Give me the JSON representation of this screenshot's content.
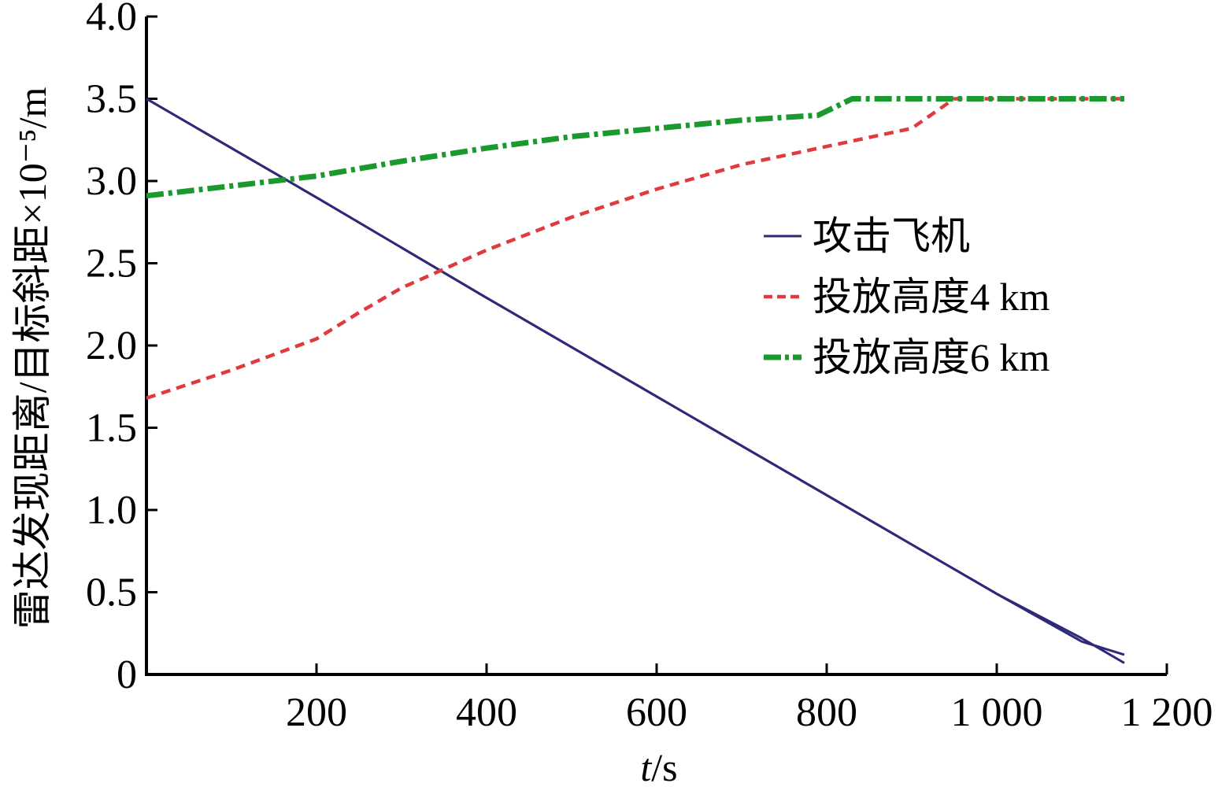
{
  "chart_data": {
    "type": "line",
    "title": "",
    "xlabel_italic": "t",
    "xlabel_rest": "/s",
    "ylabel": "雷达发现距离/目标斜距×10⁻⁵/m",
    "xlim": [
      0,
      1200
    ],
    "ylim": [
      0,
      4.0
    ],
    "x_ticks": [
      200,
      400,
      600,
      800,
      1000,
      1200
    ],
    "x_tick_labels": [
      "200",
      "400",
      "600",
      "800",
      "1 000",
      "1 200"
    ],
    "y_ticks": [
      0,
      0.5,
      1.0,
      1.5,
      2.0,
      2.5,
      3.0,
      3.5,
      4.0
    ],
    "y_tick_labels": [
      "0",
      "0.5",
      "1.0",
      "1.5",
      "2.0",
      "2.5",
      "3.0",
      "3.5",
      "4.0"
    ],
    "grid": false,
    "legend_position": "center-right",
    "series": [
      {
        "name": "攻击飞机",
        "color": "#2e2a78",
        "style": "solid",
        "points": [
          [
            0,
            3.5
          ],
          [
            200,
            2.9
          ],
          [
            400,
            2.29
          ],
          [
            600,
            1.69
          ],
          [
            800,
            1.09
          ],
          [
            1000,
            0.49
          ],
          [
            1100,
            0.2
          ],
          [
            1150,
            0.12
          ]
        ]
      },
      {
        "name": "攻击飞机",
        "color": "#2e2a78",
        "style": "solid",
        "legend": false,
        "points": [
          [
            0,
            3.5
          ],
          [
            200,
            2.9
          ],
          [
            400,
            2.29
          ],
          [
            600,
            1.69
          ],
          [
            800,
            1.09
          ],
          [
            1000,
            0.49
          ],
          [
            1100,
            0.22
          ],
          [
            1150,
            0.07
          ]
        ]
      },
      {
        "name": "投放高度4 km",
        "color": "#e03a3e",
        "style": "dashed",
        "points": [
          [
            0,
            1.68
          ],
          [
            100,
            1.85
          ],
          [
            200,
            2.04
          ],
          [
            250,
            2.2
          ],
          [
            300,
            2.35
          ],
          [
            400,
            2.58
          ],
          [
            500,
            2.78
          ],
          [
            600,
            2.95
          ],
          [
            700,
            3.1
          ],
          [
            800,
            3.21
          ],
          [
            900,
            3.32
          ],
          [
            950,
            3.5
          ],
          [
            1150,
            3.5
          ]
        ]
      },
      {
        "name": "投放高度6 km",
        "color": "#1a9a2e",
        "style": "dashdot",
        "points": [
          [
            0,
            2.91
          ],
          [
            100,
            2.97
          ],
          [
            200,
            3.03
          ],
          [
            300,
            3.12
          ],
          [
            400,
            3.2
          ],
          [
            500,
            3.27
          ],
          [
            600,
            3.32
          ],
          [
            700,
            3.37
          ],
          [
            790,
            3.4
          ],
          [
            830,
            3.5
          ],
          [
            1150,
            3.5
          ]
        ]
      }
    ]
  }
}
